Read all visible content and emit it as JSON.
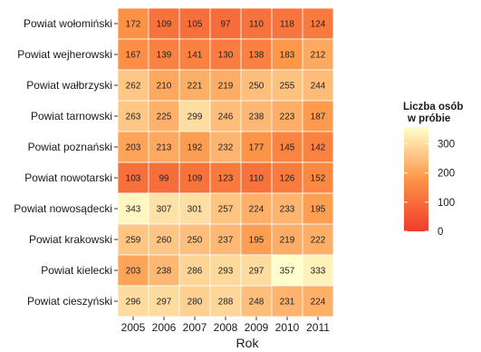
{
  "chart_data": {
    "type": "heatmap",
    "xlabel": "Rok",
    "ylabel": "",
    "legend_title_line1": "Liczba osób",
    "legend_title_line2": "w próbie",
    "x": [
      "2005",
      "2006",
      "2007",
      "2008",
      "2009",
      "2010",
      "2011"
    ],
    "y": [
      "Powiat wołomiński",
      "Powiat wejherowski",
      "Powiat wałbrzyski",
      "Powiat tarnowski",
      "Powiat poznański",
      "Powiat nowotarski",
      "Powiat nowosądecki",
      "Powiat krakowski",
      "Powiat kielecki",
      "Powiat cieszyński"
    ],
    "values": [
      [
        172,
        109,
        105,
        97,
        110,
        118,
        124
      ],
      [
        167,
        139,
        141,
        130,
        138,
        183,
        212
      ],
      [
        262,
        210,
        221,
        219,
        250,
        255,
        244
      ],
      [
        263,
        225,
        299,
        246,
        238,
        223,
        187
      ],
      [
        203,
        213,
        192,
        232,
        177,
        145,
        142
      ],
      [
        103,
        99,
        109,
        123,
        110,
        126,
        152
      ],
      [
        343,
        307,
        301,
        257,
        224,
        233,
        195
      ],
      [
        259,
        260,
        250,
        237,
        195,
        219,
        222
      ],
      [
        203,
        238,
        286,
        293,
        297,
        357,
        333
      ],
      [
        296,
        297,
        280,
        288,
        248,
        231,
        224
      ]
    ],
    "color_scale": {
      "low": "#ef3b2c",
      "high": "#ffffcc",
      "min": 0,
      "max": 357
    },
    "legend_ticks": [
      0,
      100,
      200,
      300
    ],
    "legend_position": "right"
  }
}
